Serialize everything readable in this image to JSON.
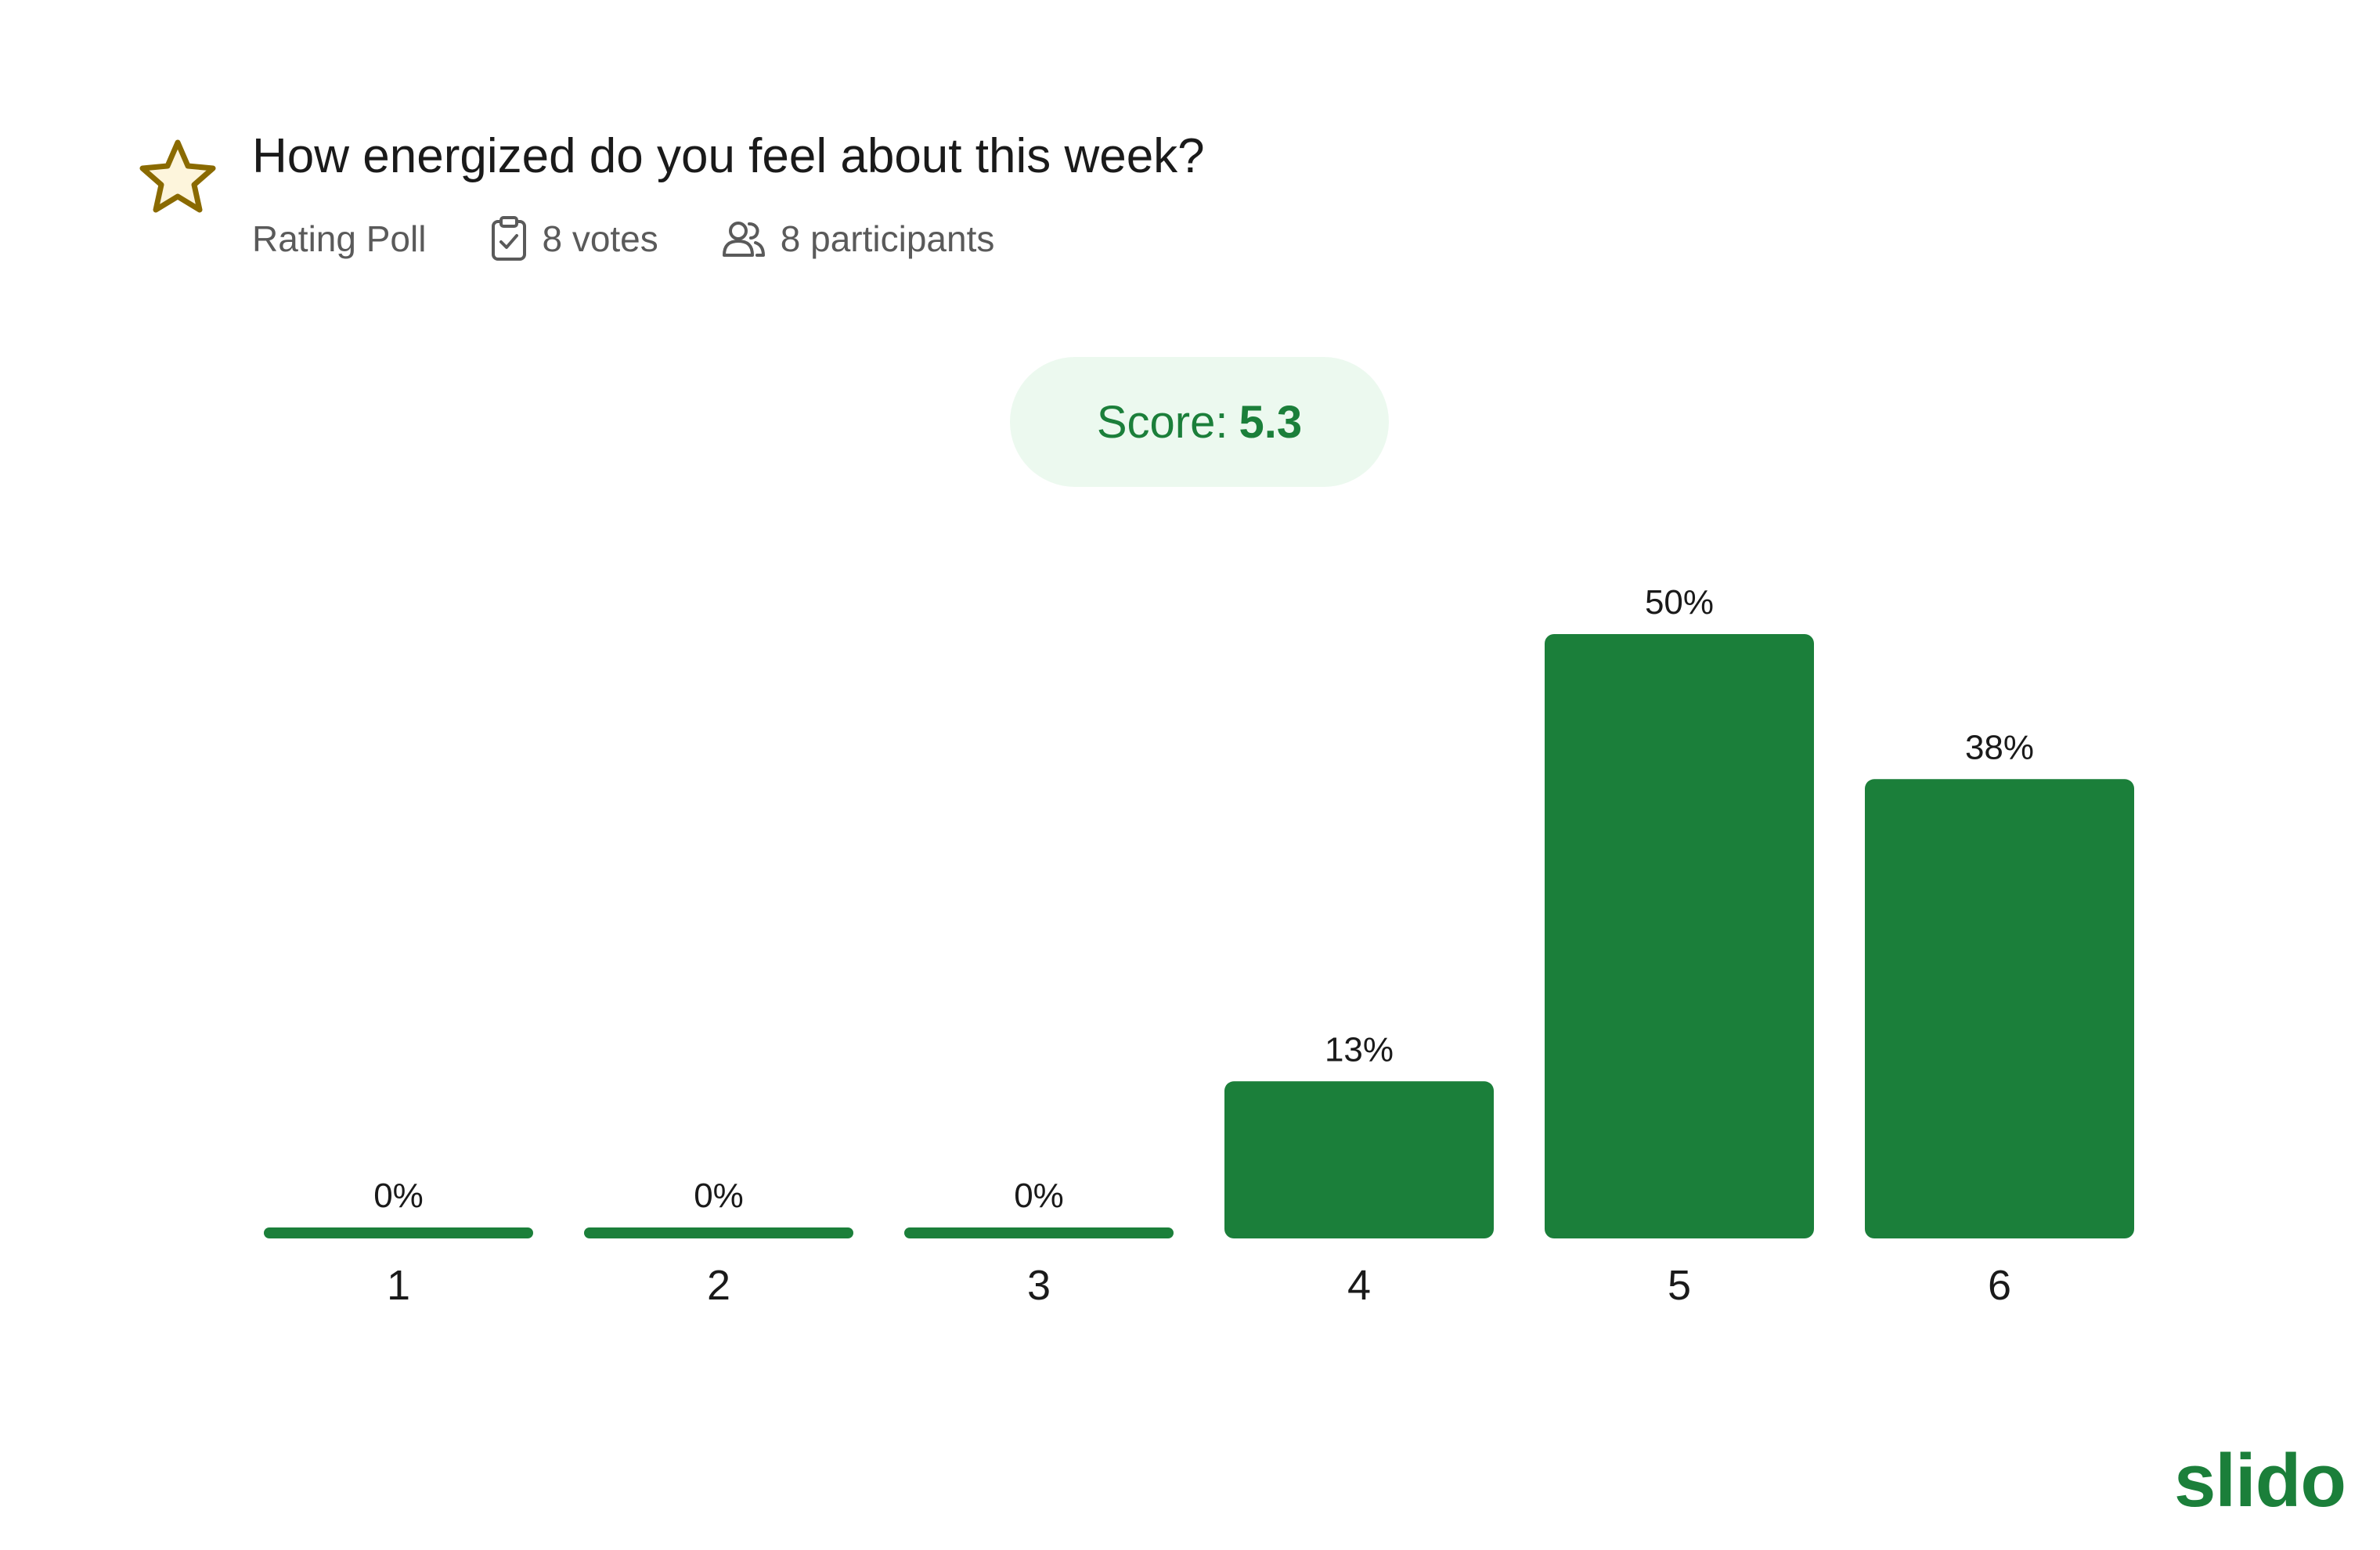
{
  "poll": {
    "question": "How energized do you feel about this week?",
    "type": "Rating Poll",
    "votes": "8 votes",
    "participants": "8 participants",
    "score_label": "Score:",
    "score_value": "5.3"
  },
  "brand": {
    "logo": "slido"
  },
  "icons": {
    "poll_type": "star-icon",
    "votes": "clipboard-check-icon",
    "participants": "people-icon"
  },
  "colors": {
    "bar": "#1b7f3a",
    "score_bg": "#ecf9ef",
    "score_text": "#1b7f3a",
    "star": "#8a6a00",
    "star_fill": "#fdf5dc"
  },
  "chart_data": {
    "type": "bar",
    "categories": [
      "1",
      "2",
      "3",
      "4",
      "5",
      "6"
    ],
    "values": [
      0,
      0,
      0,
      13,
      50,
      38
    ],
    "labels": [
      "0%",
      "0%",
      "0%",
      "13%",
      "50%",
      "38%"
    ],
    "ylim": [
      0,
      50
    ],
    "grid": false,
    "title": "",
    "xlabel": "",
    "ylabel": ""
  }
}
